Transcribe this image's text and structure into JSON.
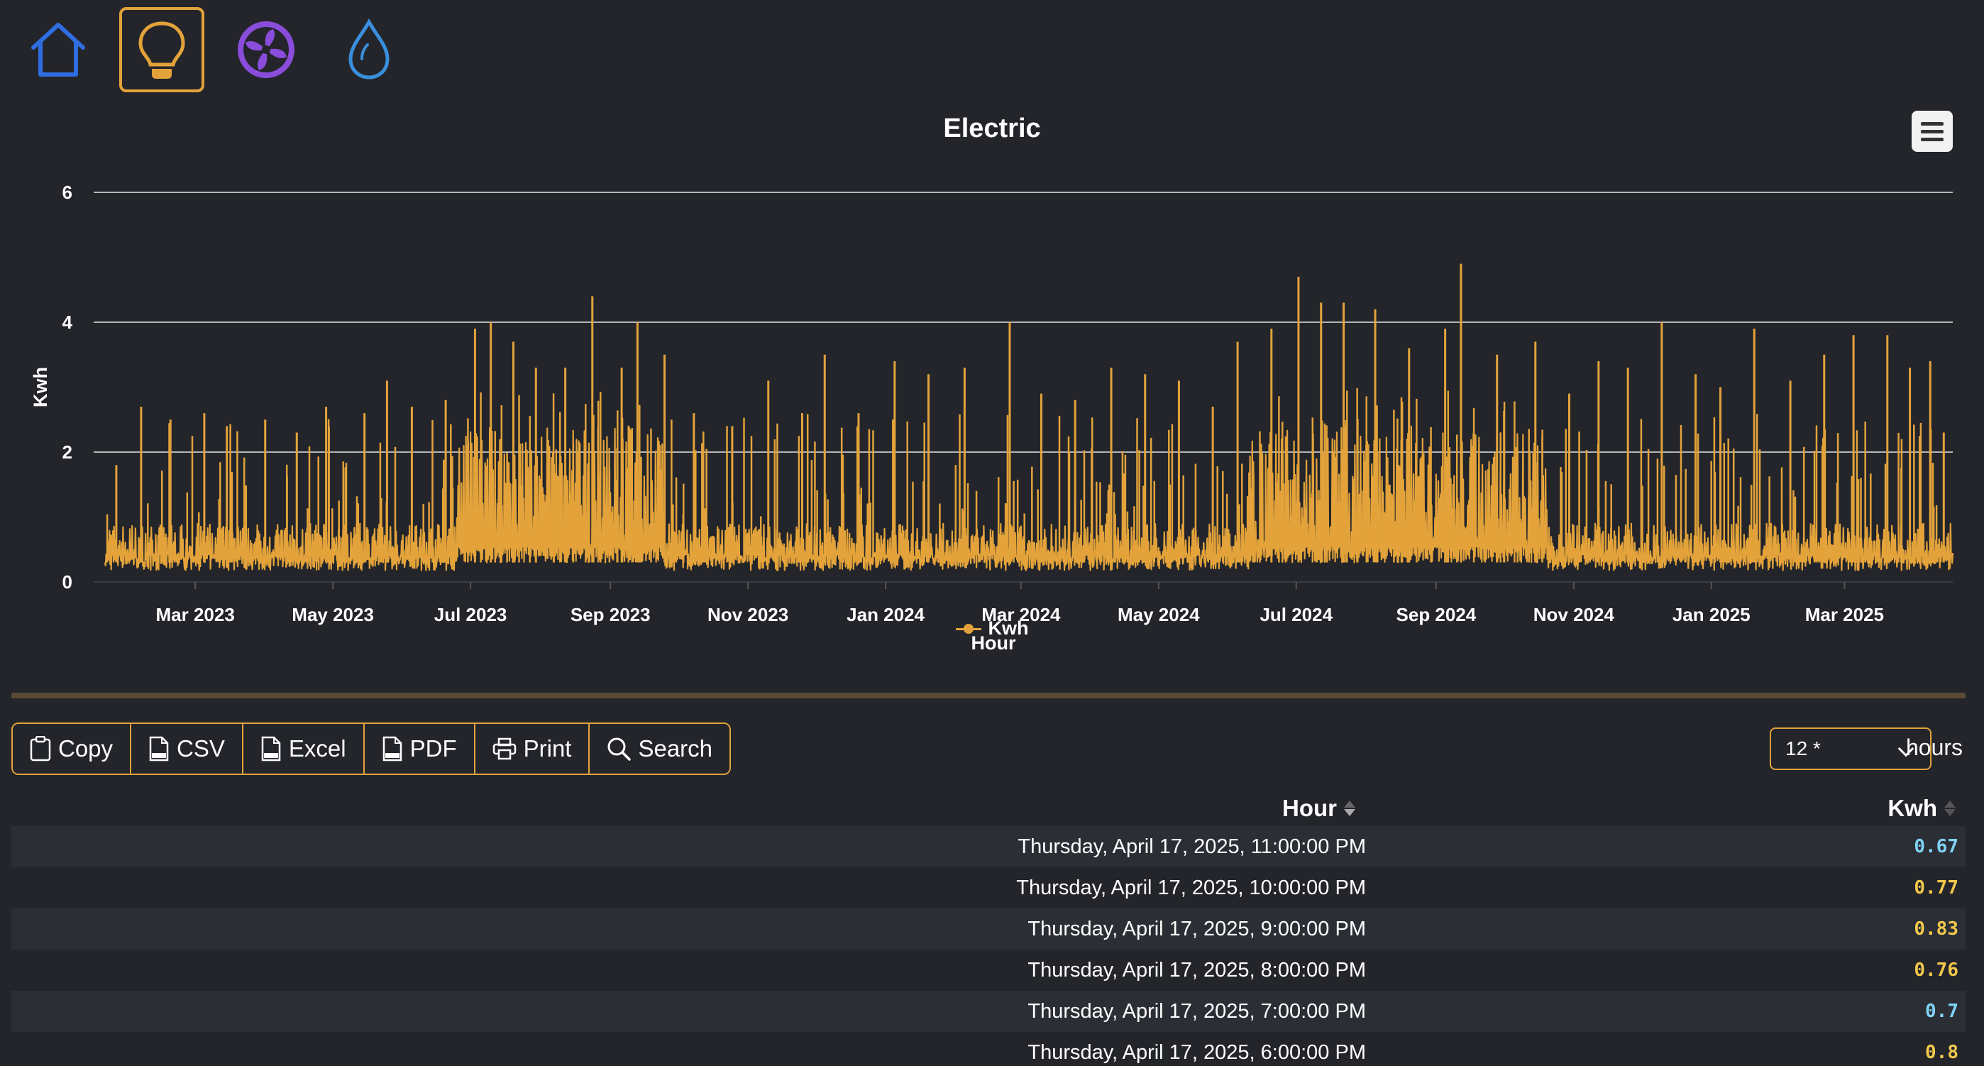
{
  "nav": {
    "items": [
      {
        "name": "home",
        "icon": "home-icon",
        "color": "#2f6de1",
        "active": false
      },
      {
        "name": "electric",
        "icon": "lightbulb-icon",
        "color": "#e3a33a",
        "active": true
      },
      {
        "name": "hvac",
        "icon": "fan-icon",
        "color": "#8a4ddb",
        "active": false
      },
      {
        "name": "water",
        "icon": "water-drop-icon",
        "color": "#3a8fdc",
        "active": false
      }
    ]
  },
  "chart": {
    "title": "Electric",
    "menu_icon": "hamburger-menu-icon",
    "legend": "Kwh"
  },
  "chart_data": {
    "type": "line",
    "title": "Electric",
    "xlabel": "Hour",
    "ylabel": "Kwh",
    "ylim": [
      0,
      6
    ],
    "yticks": [
      0,
      2,
      4,
      6
    ],
    "xlim": [
      "2023-01-20",
      "2025-04-18"
    ],
    "xticks": [
      "2023-03-01",
      "2023-05-01",
      "2023-07-01",
      "2023-09-01",
      "2023-11-01",
      "2024-01-01",
      "2024-03-01",
      "2024-05-01",
      "2024-07-01",
      "2024-09-01",
      "2024-11-01",
      "2025-01-01",
      "2025-03-01"
    ],
    "xtick_labels": [
      "Mar 2023",
      "May 2023",
      "Jul 2023",
      "Sep 2023",
      "Nov 2023",
      "Jan 2024",
      "Mar 2024",
      "May 2024",
      "Jul 2024",
      "Sep 2024",
      "Nov 2024",
      "Jan 2025",
      "Mar 2025"
    ],
    "grid": true,
    "legend_position": "bottom-center",
    "series": [
      {
        "name": "Kwh",
        "color": "#e3a33a",
        "base_range": [
          0.3,
          0.9
        ],
        "summer_band_range": [
          0.5,
          2.4
        ],
        "summer_periods": [
          [
            "2023-06-25",
            "2023-09-25"
          ],
          [
            "2024-06-10",
            "2024-10-20"
          ]
        ],
        "peaks": [
          [
            "2023-01-25",
            1.8
          ],
          [
            "2023-02-05",
            2.7
          ],
          [
            "2023-02-18",
            2.5
          ],
          [
            "2023-03-05",
            2.6
          ],
          [
            "2023-03-15",
            2.4
          ],
          [
            "2023-04-01",
            2.5
          ],
          [
            "2023-04-15",
            2.3
          ],
          [
            "2023-04-28",
            2.7
          ],
          [
            "2023-05-15",
            2.6
          ],
          [
            "2023-05-25",
            3.1
          ],
          [
            "2023-06-05",
            2.7
          ],
          [
            "2023-06-20",
            2.8
          ],
          [
            "2023-07-03",
            3.9
          ],
          [
            "2023-07-10",
            4.0
          ],
          [
            "2023-07-20",
            3.7
          ],
          [
            "2023-07-30",
            3.3
          ],
          [
            "2023-08-12",
            3.3
          ],
          [
            "2023-08-24",
            4.4
          ],
          [
            "2023-09-06",
            3.3
          ],
          [
            "2023-09-13",
            4.0
          ],
          [
            "2023-09-25",
            3.5
          ],
          [
            "2023-10-08",
            2.6
          ],
          [
            "2023-10-25",
            2.4
          ],
          [
            "2023-11-10",
            3.1
          ],
          [
            "2023-11-25",
            2.6
          ],
          [
            "2023-12-05",
            3.5
          ],
          [
            "2023-12-20",
            2.6
          ],
          [
            "2024-01-05",
            3.4
          ],
          [
            "2024-01-20",
            3.2
          ],
          [
            "2024-02-05",
            3.3
          ],
          [
            "2024-02-25",
            4.0
          ],
          [
            "2024-03-10",
            2.9
          ],
          [
            "2024-03-25",
            2.8
          ],
          [
            "2024-04-10",
            3.3
          ],
          [
            "2024-04-25",
            3.2
          ],
          [
            "2024-05-10",
            3.1
          ],
          [
            "2024-05-25",
            2.7
          ],
          [
            "2024-06-05",
            3.7
          ],
          [
            "2024-06-20",
            3.9
          ],
          [
            "2024-07-02",
            4.7
          ],
          [
            "2024-07-12",
            4.3
          ],
          [
            "2024-07-22",
            4.3
          ],
          [
            "2024-08-05",
            4.2
          ],
          [
            "2024-08-20",
            3.6
          ],
          [
            "2024-09-05",
            3.9
          ],
          [
            "2024-09-12",
            4.9
          ],
          [
            "2024-09-28",
            3.5
          ],
          [
            "2024-10-15",
            3.7
          ],
          [
            "2024-10-30",
            2.9
          ],
          [
            "2024-11-12",
            3.4
          ],
          [
            "2024-11-25",
            3.3
          ],
          [
            "2024-12-10",
            4.0
          ],
          [
            "2024-12-25",
            3.2
          ],
          [
            "2025-01-05",
            3.0
          ],
          [
            "2025-01-20",
            3.9
          ],
          [
            "2025-02-05",
            3.1
          ],
          [
            "2025-02-20",
            3.5
          ],
          [
            "2025-03-05",
            3.8
          ],
          [
            "2025-03-20",
            3.8
          ],
          [
            "2025-03-30",
            3.3
          ],
          [
            "2025-04-08",
            3.4
          ],
          [
            "2025-04-14",
            2.3
          ]
        ]
      }
    ]
  },
  "toolbar": {
    "buttons": [
      {
        "label": "Copy",
        "icon": "clipboard-icon"
      },
      {
        "label": "CSV",
        "icon": "csv-file-icon"
      },
      {
        "label": "Excel",
        "icon": "xlsx-file-icon"
      },
      {
        "label": "PDF",
        "icon": "pdf-file-icon"
      },
      {
        "label": "Print",
        "icon": "printer-icon"
      },
      {
        "label": "Search",
        "icon": "search-icon"
      }
    ]
  },
  "range": {
    "value": "12 *",
    "unit_label": "hours"
  },
  "table": {
    "headers": {
      "hour": "Hour",
      "kwh": "Kwh"
    },
    "rows": [
      {
        "hour": "Thursday, April 17, 2025, 11:00:00 PM",
        "kwh": "0.67",
        "color": "#7fd3f5"
      },
      {
        "hour": "Thursday, April 17, 2025, 10:00:00 PM",
        "kwh": "0.77",
        "color": "#f2c94c"
      },
      {
        "hour": "Thursday, April 17, 2025, 9:00:00 PM",
        "kwh": "0.83",
        "color": "#f2c94c"
      },
      {
        "hour": "Thursday, April 17, 2025, 8:00:00 PM",
        "kwh": "0.76",
        "color": "#f2c94c"
      },
      {
        "hour": "Thursday, April 17, 2025, 7:00:00 PM",
        "kwh": "0.7",
        "color": "#7fd3f5"
      },
      {
        "hour": "Thursday, April 17, 2025, 6:00:00 PM",
        "kwh": "0.8",
        "color": "#f2c94c"
      }
    ]
  }
}
